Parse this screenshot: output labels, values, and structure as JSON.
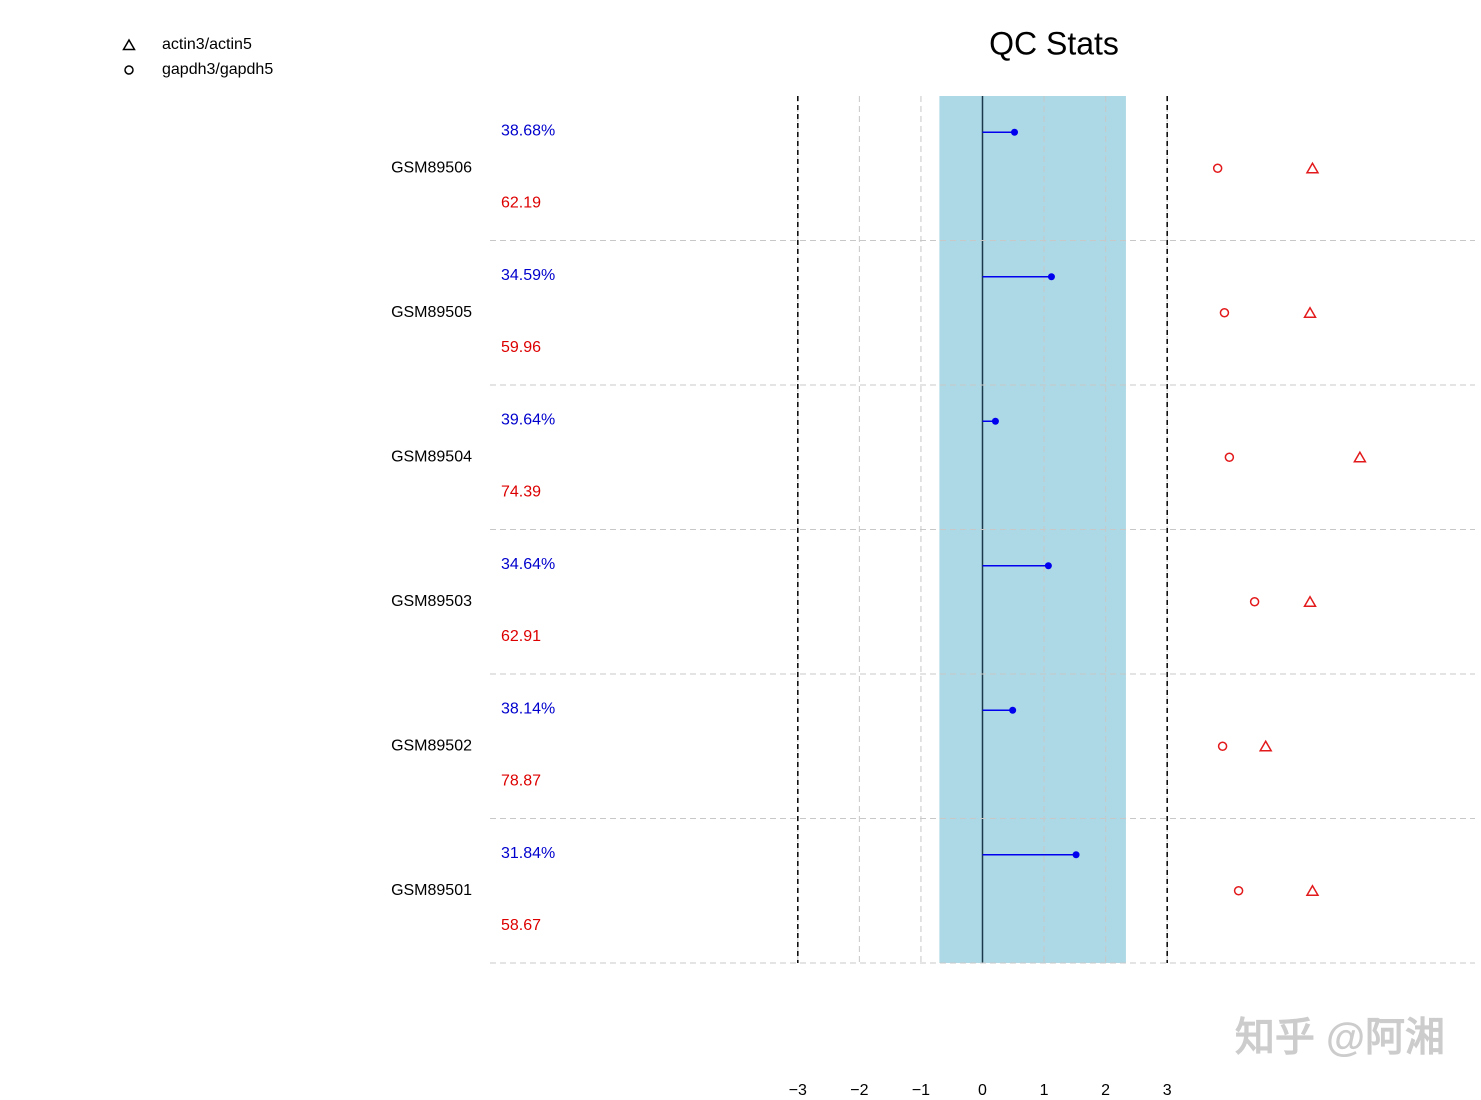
{
  "chart_data": {
    "type": "qc",
    "title": "QC Stats",
    "categories": [
      "GSM89506",
      "GSM89505",
      "GSM89504",
      "GSM89503",
      "GSM89502",
      "GSM89501"
    ],
    "scale_factors": {
      "color": "#0000ee",
      "values": [
        0.52,
        1.12,
        0.21,
        1.07,
        0.49,
        1.52
      ]
    },
    "percent_present": {
      "color": "#0000cd",
      "values": [
        38.68,
        34.59,
        39.64,
        34.64,
        38.14,
        31.84
      ],
      "value_labels": [
        "38.68%",
        "34.59%",
        "39.64%",
        "34.64%",
        "38.14%",
        "31.84%"
      ]
    },
    "average_background": {
      "color": "#dd0000",
      "values": [
        62.19,
        59.96,
        74.39,
        62.91,
        78.87,
        58.67
      ]
    },
    "series": [
      {
        "name": "actin3/actin5",
        "color": "#e31a1c",
        "marker": "triangle",
        "values": [
          5.36,
          5.32,
          6.13,
          5.32,
          4.6,
          5.36
        ]
      },
      {
        "name": "gapdh3/gapdh5",
        "color": "#e31a1c",
        "marker": "circle",
        "values": [
          3.82,
          3.93,
          4.01,
          4.42,
          3.9,
          4.16
        ]
      }
    ],
    "band": {
      "color": "#add8e6",
      "range": [
        -0.7,
        2.33
      ]
    },
    "limits": [
      -3,
      3
    ],
    "xlim": [
      -8,
      8
    ],
    "xticks": [
      {
        "value": -3,
        "label": "−3"
      },
      {
        "value": -2,
        "label": "−2"
      },
      {
        "value": -1,
        "label": "−1"
      },
      0,
      1,
      2,
      3
    ],
    "grid": true,
    "watermark": "知乎 @阿湘"
  }
}
